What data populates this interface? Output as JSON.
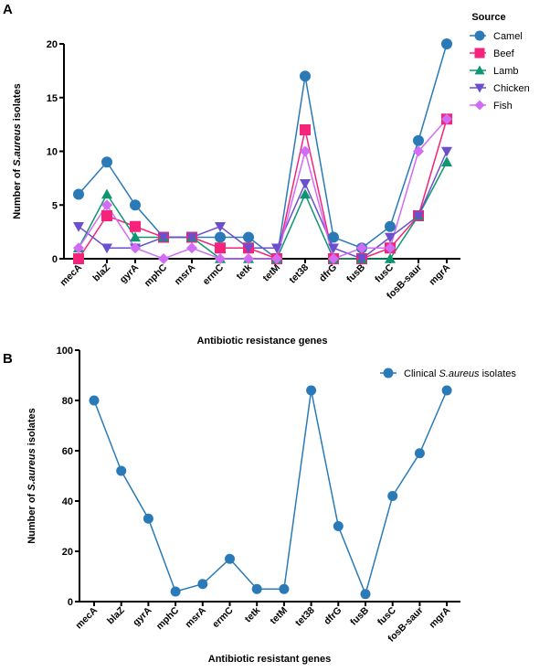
{
  "chart_data": [
    {
      "type": "line",
      "panel_label": "A",
      "title": "",
      "xlabel": "Antibiotic resistance genes",
      "ylabel_prefix": "Number of ",
      "ylabel_italic": "S.aureus",
      "ylabel_suffix": " isolates",
      "ylim": [
        0,
        20
      ],
      "yticks": [
        0,
        5,
        10,
        15,
        20
      ],
      "categories": [
        "mecA",
        "blaZ",
        "gyrA",
        "mphC",
        "msrA",
        "ermC",
        "tetk",
        "tetM",
        "tet38",
        "dfrG",
        "fusB",
        "fusC",
        "fosB-saur",
        "mgrA"
      ],
      "legend_title": "Source",
      "legend_position": "top-right",
      "series": [
        {
          "name": "Camel",
          "color": "#2a7ab8",
          "marker": "circle",
          "values": [
            6,
            9,
            5,
            2,
            2,
            2,
            2,
            0,
            17,
            2,
            1,
            3,
            11,
            20
          ]
        },
        {
          "name": "Beef",
          "color": "#f5237a",
          "marker": "square",
          "values": [
            0,
            4,
            3,
            2,
            2,
            1,
            1,
            0,
            12,
            0,
            0,
            1,
            4,
            13
          ]
        },
        {
          "name": "Lamb",
          "color": "#0e9670",
          "marker": "triangle-up",
          "values": [
            1,
            6,
            2,
            2,
            2,
            0,
            0,
            0,
            6,
            0,
            0,
            0,
            4,
            9
          ]
        },
        {
          "name": "Chicken",
          "color": "#6a4fce",
          "marker": "triangle-down",
          "values": [
            3,
            1,
            1,
            2,
            2,
            3,
            1,
            1,
            7,
            1,
            0,
            2,
            4,
            10
          ]
        },
        {
          "name": "Fish",
          "color": "#d26cf5",
          "marker": "diamond",
          "values": [
            1,
            5,
            1,
            0,
            1,
            0,
            0,
            0,
            10,
            0,
            1,
            1,
            10,
            13
          ]
        }
      ]
    },
    {
      "type": "line",
      "panel_label": "B",
      "title": "",
      "xlabel": "Antibiotic resistant genes",
      "ylabel_prefix": "Number of ",
      "ylabel_italic": "S.aureus",
      "ylabel_suffix": " isolates",
      "ylim": [
        0,
        100
      ],
      "yticks": [
        0,
        20,
        40,
        60,
        80,
        100
      ],
      "categories": [
        "mecA",
        "blaZ",
        "gyrA",
        "mphC",
        "msrA",
        "ermC",
        "tetk",
        "tetM",
        "tet38",
        "dfrG",
        "fusB",
        "fusC",
        "fosB-saur",
        "mgrA"
      ],
      "legend_position": "top-right",
      "series": [
        {
          "name_prefix": "Clinical ",
          "name_italic": "S.aureus",
          "name_suffix": " isolates",
          "color": "#2a7ab8",
          "marker": "circle",
          "values": [
            80,
            52,
            33,
            4,
            7,
            17,
            5,
            5,
            84,
            30,
            3,
            42,
            59,
            84
          ]
        }
      ]
    }
  ]
}
